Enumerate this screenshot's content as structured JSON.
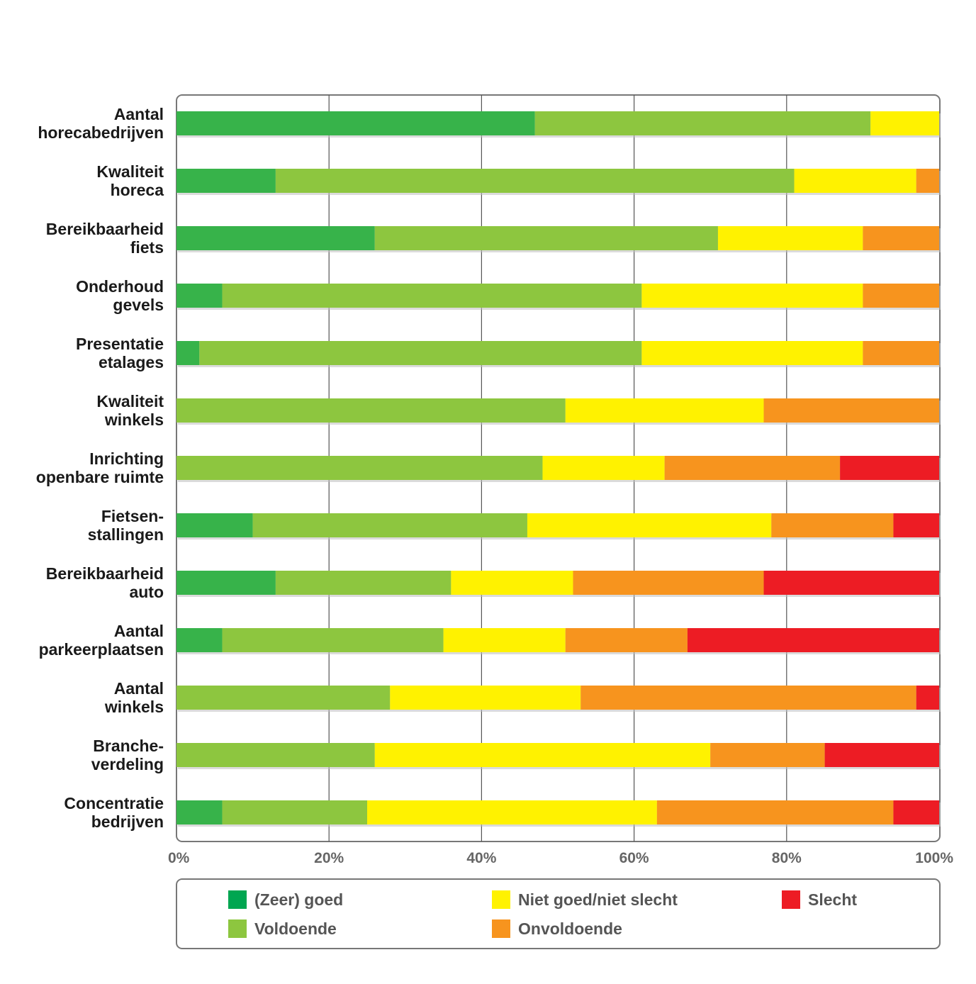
{
  "chart_data": {
    "type": "bar",
    "orientation": "horizontal",
    "stacked": true,
    "categories": [
      "Aantal horecabedrijven",
      "Kwaliteit horeca",
      "Bereikbaarheid fiets",
      "Onderhoud gevels",
      "Presentatie etalages",
      "Kwaliteit winkels",
      "Inrichting openbare ruimte",
      "Fietsen-stallingen",
      "Bereikbaarheid auto",
      "Aantal parkeerplaatsen",
      "Aantal winkels",
      "Branche-verdeling",
      "Concentratie bedrijven"
    ],
    "category_label_lines": [
      [
        "Aantal",
        "horecabedrijven"
      ],
      [
        "Kwaliteit",
        "horeca"
      ],
      [
        "Bereikbaarheid",
        "fiets"
      ],
      [
        "Onderhoud",
        "gevels"
      ],
      [
        "Presentatie",
        "etalages"
      ],
      [
        "Kwaliteit",
        "winkels"
      ],
      [
        "Inrichting",
        "openbare ruimte"
      ],
      [
        "Fietsen-",
        "stallingen"
      ],
      [
        "Bereikbaarheid",
        "auto"
      ],
      [
        "Aantal",
        "parkeerplaatsen"
      ],
      [
        "Aantal",
        "winkels"
      ],
      [
        "Branche-",
        "verdeling"
      ],
      [
        "Concentratie",
        "bedrijven"
      ]
    ],
    "series": [
      {
        "name": "(Zeer) goed",
        "color": "#37b34a",
        "values": [
          47,
          13,
          26,
          6,
          3,
          0,
          0,
          10,
          13,
          6,
          0,
          0,
          6
        ]
      },
      {
        "name": "Voldoende",
        "color": "#8dc63f",
        "values": [
          44,
          68,
          45,
          55,
          58,
          51,
          48,
          36,
          23,
          29,
          28,
          26,
          19
        ]
      },
      {
        "name": "Niet goed/niet slecht",
        "color": "#fff200",
        "values": [
          9,
          16,
          19,
          29,
          29,
          26,
          16,
          32,
          16,
          16,
          25,
          44,
          38
        ]
      },
      {
        "name": "Onvoldoende",
        "color": "#f7941e",
        "values": [
          0,
          3,
          10,
          10,
          10,
          23,
          23,
          16,
          25,
          16,
          44,
          15,
          31
        ]
      },
      {
        "name": "Slecht",
        "color": "#ed1c24",
        "values": [
          0,
          0,
          0,
          0,
          0,
          0,
          13,
          6,
          23,
          33,
          3,
          15,
          6
        ]
      }
    ],
    "xlim": [
      0,
      100
    ],
    "x_ticks": [
      "0%",
      "20%",
      "40%",
      "60%",
      "80%",
      "100%"
    ],
    "grid": true,
    "legend_position": "bottom",
    "legend_order": [
      [
        "(Zeer) goed",
        "Niet goed/niet slecht",
        "Slecht"
      ],
      [
        "Voldoende",
        "Onvoldoende"
      ]
    ],
    "legend_swatch_colors": {
      "(Zeer) goed": "#00a651",
      "Voldoende": "#8dc63f",
      "Niet goed/niet slecht": "#fff200",
      "Onvoldoende": "#f7941e",
      "Slecht": "#ed1c24"
    },
    "title": "",
    "xlabel": "",
    "ylabel": ""
  }
}
